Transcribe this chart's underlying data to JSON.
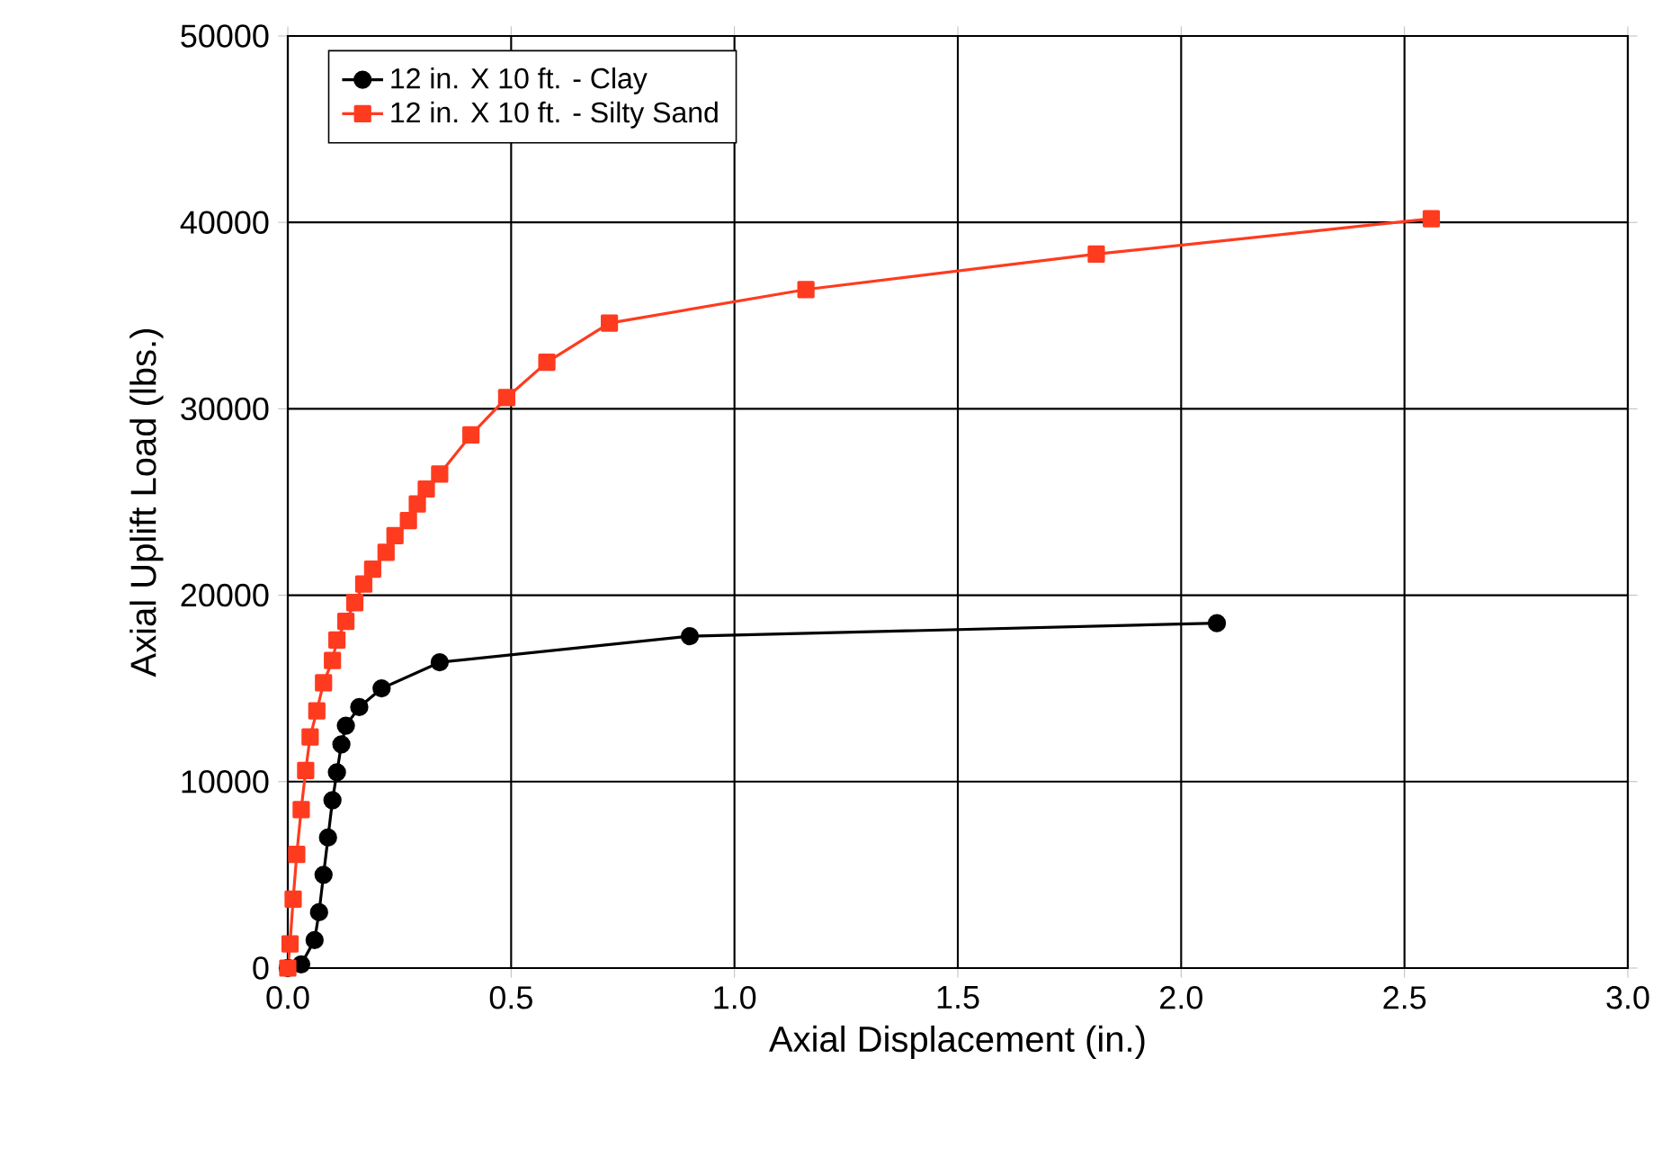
{
  "chart_data": {
    "type": "line",
    "xlabel": "Axial Displacement (in.)",
    "ylabel": "Axial Uplift Load (lbs.)",
    "xlim": [
      0,
      3
    ],
    "ylim": [
      0,
      50000
    ],
    "xticks": [
      {
        "value": 0,
        "label": "0.0"
      },
      {
        "value": 0.5,
        "label": "0.5"
      },
      {
        "value": 1,
        "label": "1.0"
      },
      {
        "value": 1.5,
        "label": "1.5"
      },
      {
        "value": 2,
        "label": "2.0"
      },
      {
        "value": 2.5,
        "label": "2.5"
      },
      {
        "value": 3,
        "label": "3.0"
      }
    ],
    "yticks": [
      0,
      10000,
      20000,
      30000,
      40000,
      50000
    ],
    "grid": true,
    "legend": "top left",
    "line_style": "solid",
    "series": [
      {
        "name": "12 in. X 10 ft. - Clay",
        "color": "#000000",
        "marker": "circle",
        "x": [
          0,
          0.03,
          0.06,
          0.07,
          0.08,
          0.09,
          0.1,
          0.11,
          0.12,
          0.13,
          0.16,
          0.21,
          0.34,
          0.9,
          2.08
        ],
        "values": [
          0,
          200,
          1500,
          3000,
          5000,
          7000,
          9000,
          10500,
          12000,
          13000,
          14000,
          15000,
          16400,
          17800,
          18500
        ]
      },
      {
        "name": "12 in. X 10 ft.  - Silty Sand",
        "color": "#ff3b1f",
        "marker": "square",
        "x": [
          0,
          0.005,
          0.012,
          0.02,
          0.03,
          0.04,
          0.05,
          0.065,
          0.08,
          0.1,
          0.11,
          0.13,
          0.15,
          0.17,
          0.19,
          0.22,
          0.24,
          0.27,
          0.29,
          0.31,
          0.34,
          0.41,
          0.49,
          0.58,
          0.72,
          1.16,
          1.81,
          2.56
        ],
        "values": [
          0,
          1300,
          3700,
          6100,
          8500,
          10600,
          12400,
          13800,
          15300,
          16500,
          17600,
          18600,
          19600,
          20600,
          21400,
          22300,
          23200,
          24000,
          24900,
          25700,
          26500,
          28600,
          30600,
          32500,
          34600,
          36400,
          38300,
          40200
        ]
      }
    ]
  }
}
